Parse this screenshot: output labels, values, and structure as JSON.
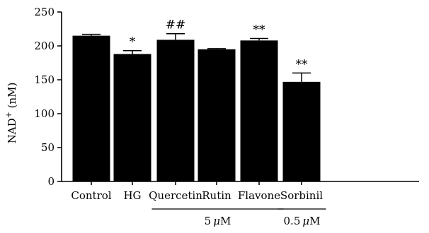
{
  "chart_data": {
    "type": "bar",
    "ylabel_main": "NAD",
    "ylabel_sup": "+",
    "ylabel_unit": " (nM)",
    "ylim": [
      0,
      250
    ],
    "yticks": [
      0,
      50,
      100,
      150,
      200,
      250
    ],
    "categories": [
      "Control",
      "HG",
      "Quercetin",
      "Rutin",
      "Flavone",
      "Sorbinil"
    ],
    "values": [
      215,
      188,
      209,
      195,
      208,
      147
    ],
    "errors": [
      2,
      5,
      9,
      1,
      3,
      13
    ],
    "significance": [
      "",
      "*",
      "##",
      "",
      "**",
      "**"
    ],
    "bar_color": "#000000",
    "groups": [
      {
        "label_num": "5",
        "label_mu": "μ",
        "label_unit": "M",
        "from": 2,
        "to": 4
      },
      {
        "label_num": "0.5",
        "label_mu": "μ",
        "label_unit": "M",
        "from": 5,
        "to": 5
      }
    ]
  }
}
